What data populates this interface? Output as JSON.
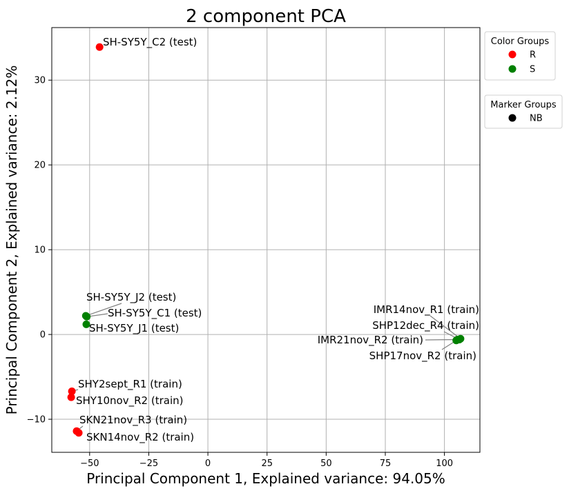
{
  "chart_data": {
    "type": "scatter",
    "title": "2 component PCA",
    "xlabel": "Principal Component 1, Explained variance: 94.05%",
    "ylabel": "Principal Component 2, Explained variance: 2.12%",
    "xlim": [
      -66,
      115
    ],
    "ylim": [
      -13.9,
      36.2
    ],
    "xticks": [
      "−50",
      "−25",
      "0",
      "25",
      "50",
      "75",
      "100"
    ],
    "xtick_values": [
      -50,
      -25,
      0,
      25,
      50,
      75,
      100
    ],
    "yticks": [
      "−10",
      "0",
      "10",
      "20",
      "30"
    ],
    "ytick_values": [
      -10,
      0,
      10,
      20,
      30
    ],
    "grid": true,
    "colors": {
      "R": "#ff0000",
      "S": "#008000",
      "marker": "#000000"
    },
    "points": [
      {
        "label": "SH-SY5Y_C2 (test)",
        "group": "R",
        "x": -45.8,
        "y": 33.9
      },
      {
        "label": "SH-SY5Y_J2 (test)",
        "group": "S",
        "x": -51.6,
        "y": 2.2
      },
      {
        "label": "SH-SY5Y_C1 (test)",
        "group": "S",
        "x": -51.2,
        "y": 2.1
      },
      {
        "label": "SH-SY5Y_J1 (test)",
        "group": "S",
        "x": -51.4,
        "y": 1.2
      },
      {
        "label": "SHY2sept_R1 (train)",
        "group": "R",
        "x": -57.5,
        "y": -6.7
      },
      {
        "label": "SHY10nov_R2 (train)",
        "group": "R",
        "x": -57.8,
        "y": -7.4
      },
      {
        "label": "SKN21nov_R3 (train)",
        "group": "R",
        "x": -55.5,
        "y": -11.4
      },
      {
        "label": "SKN14nov_R2 (train)",
        "group": "R",
        "x": -54.6,
        "y": -11.6
      },
      {
        "label": "IMR14nov_R1 (train)",
        "group": "S",
        "x": 106.8,
        "y": -0.5
      },
      {
        "label": "SHP12dec_R4 (train)",
        "group": "S",
        "x": 106.3,
        "y": -0.6
      },
      {
        "label": "IMR21nov_R2 (train)",
        "group": "S",
        "x": 105.5,
        "y": -0.6
      },
      {
        "label": "SHP17nov_R2 (train)",
        "group": "S",
        "x": 105.0,
        "y": -0.7
      }
    ],
    "legends": [
      {
        "title": "Color Groups",
        "entries": [
          {
            "label": "R",
            "color": "#ff0000"
          },
          {
            "label": "S",
            "color": "#008000"
          }
        ]
      },
      {
        "title": "Marker Groups",
        "entries": [
          {
            "label": "NB",
            "color": "#000000"
          }
        ]
      }
    ],
    "legend_placement": "outside-top-right"
  }
}
